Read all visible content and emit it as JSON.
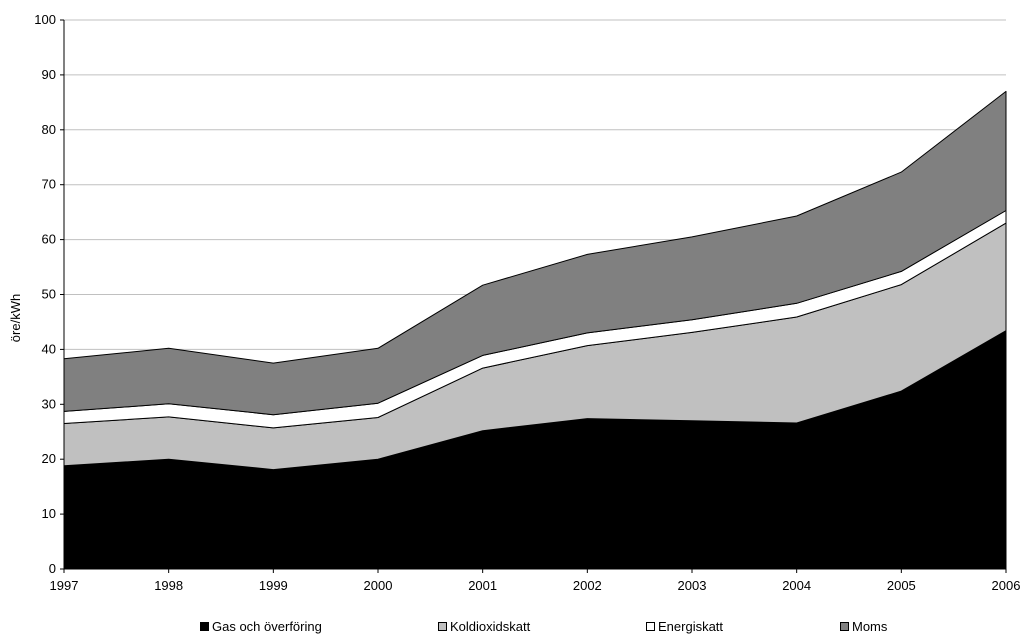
{
  "chart_data": {
    "type": "area",
    "stacked": true,
    "title": "",
    "xlabel": "",
    "ylabel": "öre/kWh",
    "ylim": [
      0,
      100
    ],
    "yticks": [
      0,
      10,
      20,
      30,
      40,
      50,
      60,
      70,
      80,
      90,
      100
    ],
    "grid": "horizontal",
    "legend_position": "bottom",
    "categories": [
      "1997",
      "1998",
      "1999",
      "2000",
      "2001",
      "2002",
      "2003",
      "2004",
      "2005",
      "2006"
    ],
    "series": [
      {
        "name": "Gas och överföring",
        "color": "#000000",
        "values": [
          18.8,
          20.0,
          18.1,
          20.0,
          25.2,
          27.4,
          27.0,
          26.6,
          32.4,
          43.4
        ]
      },
      {
        "name": "Koldioxidskatt",
        "color": "#c0c0c0",
        "values": [
          7.7,
          7.7,
          7.6,
          7.6,
          11.4,
          13.3,
          16.1,
          19.3,
          19.4,
          19.6
        ]
      },
      {
        "name": "Energiskatt",
        "color": "#ffffff",
        "values": [
          2.2,
          2.4,
          2.4,
          2.6,
          2.3,
          2.3,
          2.3,
          2.5,
          2.4,
          2.3
        ]
      },
      {
        "name": "Moms",
        "color": "#808080",
        "values": [
          9.6,
          10.1,
          9.4,
          10.0,
          12.8,
          14.3,
          15.1,
          15.9,
          18.1,
          21.7
        ]
      }
    ]
  }
}
